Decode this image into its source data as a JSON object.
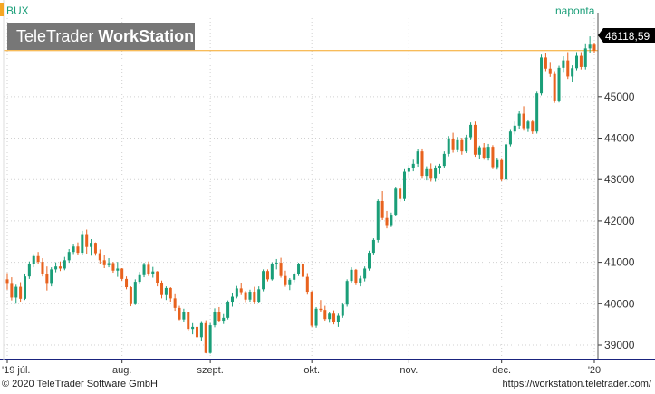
{
  "symbol": "BUX",
  "interval": "naponta",
  "watermark": {
    "brand_regular": "TeleTrader",
    "brand_bold": "WorkStation"
  },
  "last_price_label": "46118,59",
  "footer": {
    "copyright": "© 2020 TeleTrader Software GmbH",
    "url": "https://workstation.teletrader.com/"
  },
  "colors": {
    "up": "#1a9e78",
    "down": "#e8621e",
    "symbol_bar": "#f5a623",
    "price_tag_bg": "#000000",
    "axis_line": "#1a237e"
  },
  "chart_data": {
    "type": "candlestick",
    "title": "BUX",
    "y_axis": {
      "ticks": [
        39000,
        40000,
        41000,
        42000,
        43000,
        44000,
        45000
      ],
      "tick_labels": [
        "39000",
        "40000",
        "41000",
        "42000",
        "43000",
        "44000",
        "45000"
      ],
      "ylim": [
        38650,
        46900
      ],
      "position": "right",
      "grid": true
    },
    "x_axis": {
      "tick_labels": [
        "'19 júl.",
        "aug.",
        "szept.",
        "okt.",
        "nov.",
        "dec.",
        "'20"
      ],
      "tick_candle_index": [
        0,
        26,
        46,
        69,
        91,
        112,
        133
      ]
    },
    "last_value": 46118.59,
    "candles": [
      [
        40590,
        40740,
        40340,
        40480
      ],
      [
        40480,
        40640,
        40080,
        40150
      ],
      [
        40150,
        40460,
        40000,
        40410
      ],
      [
        40410,
        40520,
        40050,
        40120
      ],
      [
        40120,
        40730,
        40090,
        40660
      ],
      [
        40660,
        41020,
        40600,
        40950
      ],
      [
        40950,
        41200,
        40880,
        41150
      ],
      [
        41150,
        41250,
        40970,
        41010
      ],
      [
        41010,
        41100,
        40660,
        40720
      ],
      [
        40720,
        40900,
        40320,
        40480
      ],
      [
        40480,
        40880,
        40420,
        40830
      ],
      [
        40830,
        41000,
        40760,
        40900
      ],
      [
        40900,
        41020,
        40790,
        40850
      ],
      [
        40850,
        41130,
        40810,
        41050
      ],
      [
        41050,
        41320,
        40990,
        41250
      ],
      [
        41250,
        41450,
        41200,
        41380
      ],
      [
        41380,
        41480,
        41170,
        41230
      ],
      [
        41230,
        41760,
        41180,
        41680
      ],
      [
        41680,
        41790,
        41210,
        41370
      ],
      [
        41370,
        41560,
        41160,
        41470
      ],
      [
        41470,
        41480,
        41160,
        41220
      ],
      [
        41220,
        41310,
        40960,
        41050
      ],
      [
        41050,
        41180,
        40860,
        40930
      ],
      [
        40930,
        41100,
        40880,
        40980
      ],
      [
        40980,
        41010,
        40750,
        40800
      ],
      [
        40800,
        41010,
        40650,
        40850
      ],
      [
        40850,
        40860,
        40550,
        40600
      ],
      [
        40600,
        40660,
        40350,
        40400
      ],
      [
        40400,
        40420,
        39940,
        39990
      ],
      [
        39990,
        40590,
        39970,
        40530
      ],
      [
        40530,
        40770,
        40470,
        40690
      ],
      [
        40690,
        40990,
        40640,
        40940
      ],
      [
        40940,
        41020,
        40670,
        40720
      ],
      [
        40720,
        40890,
        40630,
        40780
      ],
      [
        40780,
        40790,
        40420,
        40490
      ],
      [
        40490,
        40560,
        40130,
        40210
      ],
      [
        40210,
        40420,
        40090,
        40380
      ],
      [
        40380,
        40400,
        40050,
        40130
      ],
      [
        40130,
        40230,
        39830,
        39900
      ],
      [
        39900,
        39950,
        39600,
        39620
      ],
      [
        39620,
        39880,
        39570,
        39800
      ],
      [
        39800,
        39810,
        39350,
        39390
      ],
      [
        39390,
        39530,
        39260,
        39440
      ],
      [
        39440,
        39520,
        39140,
        39190
      ],
      [
        39190,
        39580,
        39100,
        39530
      ],
      [
        39530,
        39600,
        38800,
        38810
      ],
      [
        38810,
        39530,
        38790,
        39480
      ],
      [
        39480,
        39890,
        39430,
        39810
      ],
      [
        39810,
        39920,
        39550,
        39590
      ],
      [
        39590,
        39750,
        39510,
        39660
      ],
      [
        39660,
        40080,
        39620,
        40050
      ],
      [
        40050,
        40270,
        39930,
        40170
      ],
      [
        40170,
        40430,
        40130,
        40370
      ],
      [
        40370,
        40500,
        40210,
        40280
      ],
      [
        40280,
        40310,
        40040,
        40100
      ],
      [
        40100,
        40340,
        40050,
        40290
      ],
      [
        40290,
        40410,
        39990,
        40050
      ],
      [
        40050,
        40420,
        40010,
        40350
      ],
      [
        40350,
        40830,
        40300,
        40790
      ],
      [
        40790,
        40830,
        40540,
        40590
      ],
      [
        40590,
        41000,
        40560,
        40950
      ],
      [
        40950,
        41080,
        40830,
        40990
      ],
      [
        40990,
        41110,
        40630,
        40670
      ],
      [
        40670,
        40800,
        40410,
        40450
      ],
      [
        40450,
        40620,
        40330,
        40580
      ],
      [
        40580,
        40760,
        40520,
        40710
      ],
      [
        40710,
        40990,
        40670,
        40960
      ],
      [
        40960,
        41020,
        40600,
        40650
      ],
      [
        40650,
        40740,
        40220,
        40290
      ],
      [
        40290,
        40310,
        39430,
        39470
      ],
      [
        39470,
        39920,
        39420,
        39880
      ],
      [
        39880,
        40090,
        39790,
        39850
      ],
      [
        39850,
        39950,
        39590,
        39630
      ],
      [
        39630,
        39800,
        39540,
        39760
      ],
      [
        39760,
        39840,
        39500,
        39550
      ],
      [
        39550,
        39760,
        39440,
        39710
      ],
      [
        39710,
        40030,
        39660,
        39980
      ],
      [
        39980,
        40590,
        39930,
        40550
      ],
      [
        40550,
        40880,
        40500,
        40820
      ],
      [
        40820,
        40840,
        40450,
        40490
      ],
      [
        40490,
        40670,
        40420,
        40610
      ],
      [
        40610,
        40900,
        40540,
        40850
      ],
      [
        40850,
        41280,
        40800,
        41230
      ],
      [
        41230,
        41580,
        41190,
        41540
      ],
      [
        41540,
        42520,
        41480,
        42480
      ],
      [
        42480,
        42720,
        42020,
        42070
      ],
      [
        42070,
        42240,
        41820,
        41900
      ],
      [
        41900,
        42200,
        41850,
        42150
      ],
      [
        42150,
        42820,
        42110,
        42780
      ],
      [
        42780,
        42890,
        42460,
        42530
      ],
      [
        42530,
        43250,
        42480,
        43190
      ],
      [
        43190,
        43350,
        43020,
        43280
      ],
      [
        43280,
        43480,
        43200,
        43380
      ],
      [
        43380,
        43740,
        43310,
        43680
      ],
      [
        43680,
        43750,
        43020,
        43090
      ],
      [
        43090,
        43320,
        42980,
        43250
      ],
      [
        43250,
        43390,
        42950,
        43020
      ],
      [
        43020,
        43340,
        42950,
        43290
      ],
      [
        43290,
        43380,
        43140,
        43330
      ],
      [
        43330,
        43680,
        43290,
        43620
      ],
      [
        43620,
        44050,
        43560,
        43990
      ],
      [
        43990,
        44130,
        43650,
        43710
      ],
      [
        43710,
        44030,
        43660,
        43950
      ],
      [
        43950,
        44010,
        43600,
        43680
      ],
      [
        43680,
        44080,
        43640,
        44020
      ],
      [
        44020,
        44380,
        43950,
        44320
      ],
      [
        44320,
        44400,
        43550,
        43600
      ],
      [
        43600,
        43820,
        43500,
        43780
      ],
      [
        43780,
        43880,
        43480,
        43530
      ],
      [
        43530,
        43860,
        43460,
        43790
      ],
      [
        43790,
        43830,
        43250,
        43300
      ],
      [
        43300,
        43530,
        43240,
        43470
      ],
      [
        43470,
        43520,
        42960,
        43000
      ],
      [
        43000,
        43900,
        42950,
        43850
      ],
      [
        43850,
        44220,
        43800,
        44160
      ],
      [
        44160,
        44400,
        44090,
        44300
      ],
      [
        44300,
        44650,
        44230,
        44590
      ],
      [
        44590,
        44770,
        44180,
        44240
      ],
      [
        44240,
        44450,
        44150,
        44400
      ],
      [
        44400,
        44450,
        44100,
        44160
      ],
      [
        44160,
        45120,
        44110,
        45080
      ],
      [
        45080,
        46020,
        45030,
        45950
      ],
      [
        45950,
        46060,
        45620,
        45680
      ],
      [
        45680,
        45820,
        45480,
        45550
      ],
      [
        45550,
        45620,
        44850,
        44910
      ],
      [
        44910,
        45750,
        44860,
        45700
      ],
      [
        45700,
        45980,
        45580,
        45880
      ],
      [
        45880,
        46080,
        45430,
        45490
      ],
      [
        45490,
        45760,
        45350,
        45690
      ],
      [
        45690,
        46080,
        45640,
        45990
      ],
      [
        45990,
        46080,
        45660,
        45720
      ],
      [
        45720,
        46270,
        45660,
        46170
      ],
      [
        46170,
        46460,
        46060,
        46260
      ],
      [
        46260,
        46290,
        46060,
        46118.59
      ]
    ]
  }
}
